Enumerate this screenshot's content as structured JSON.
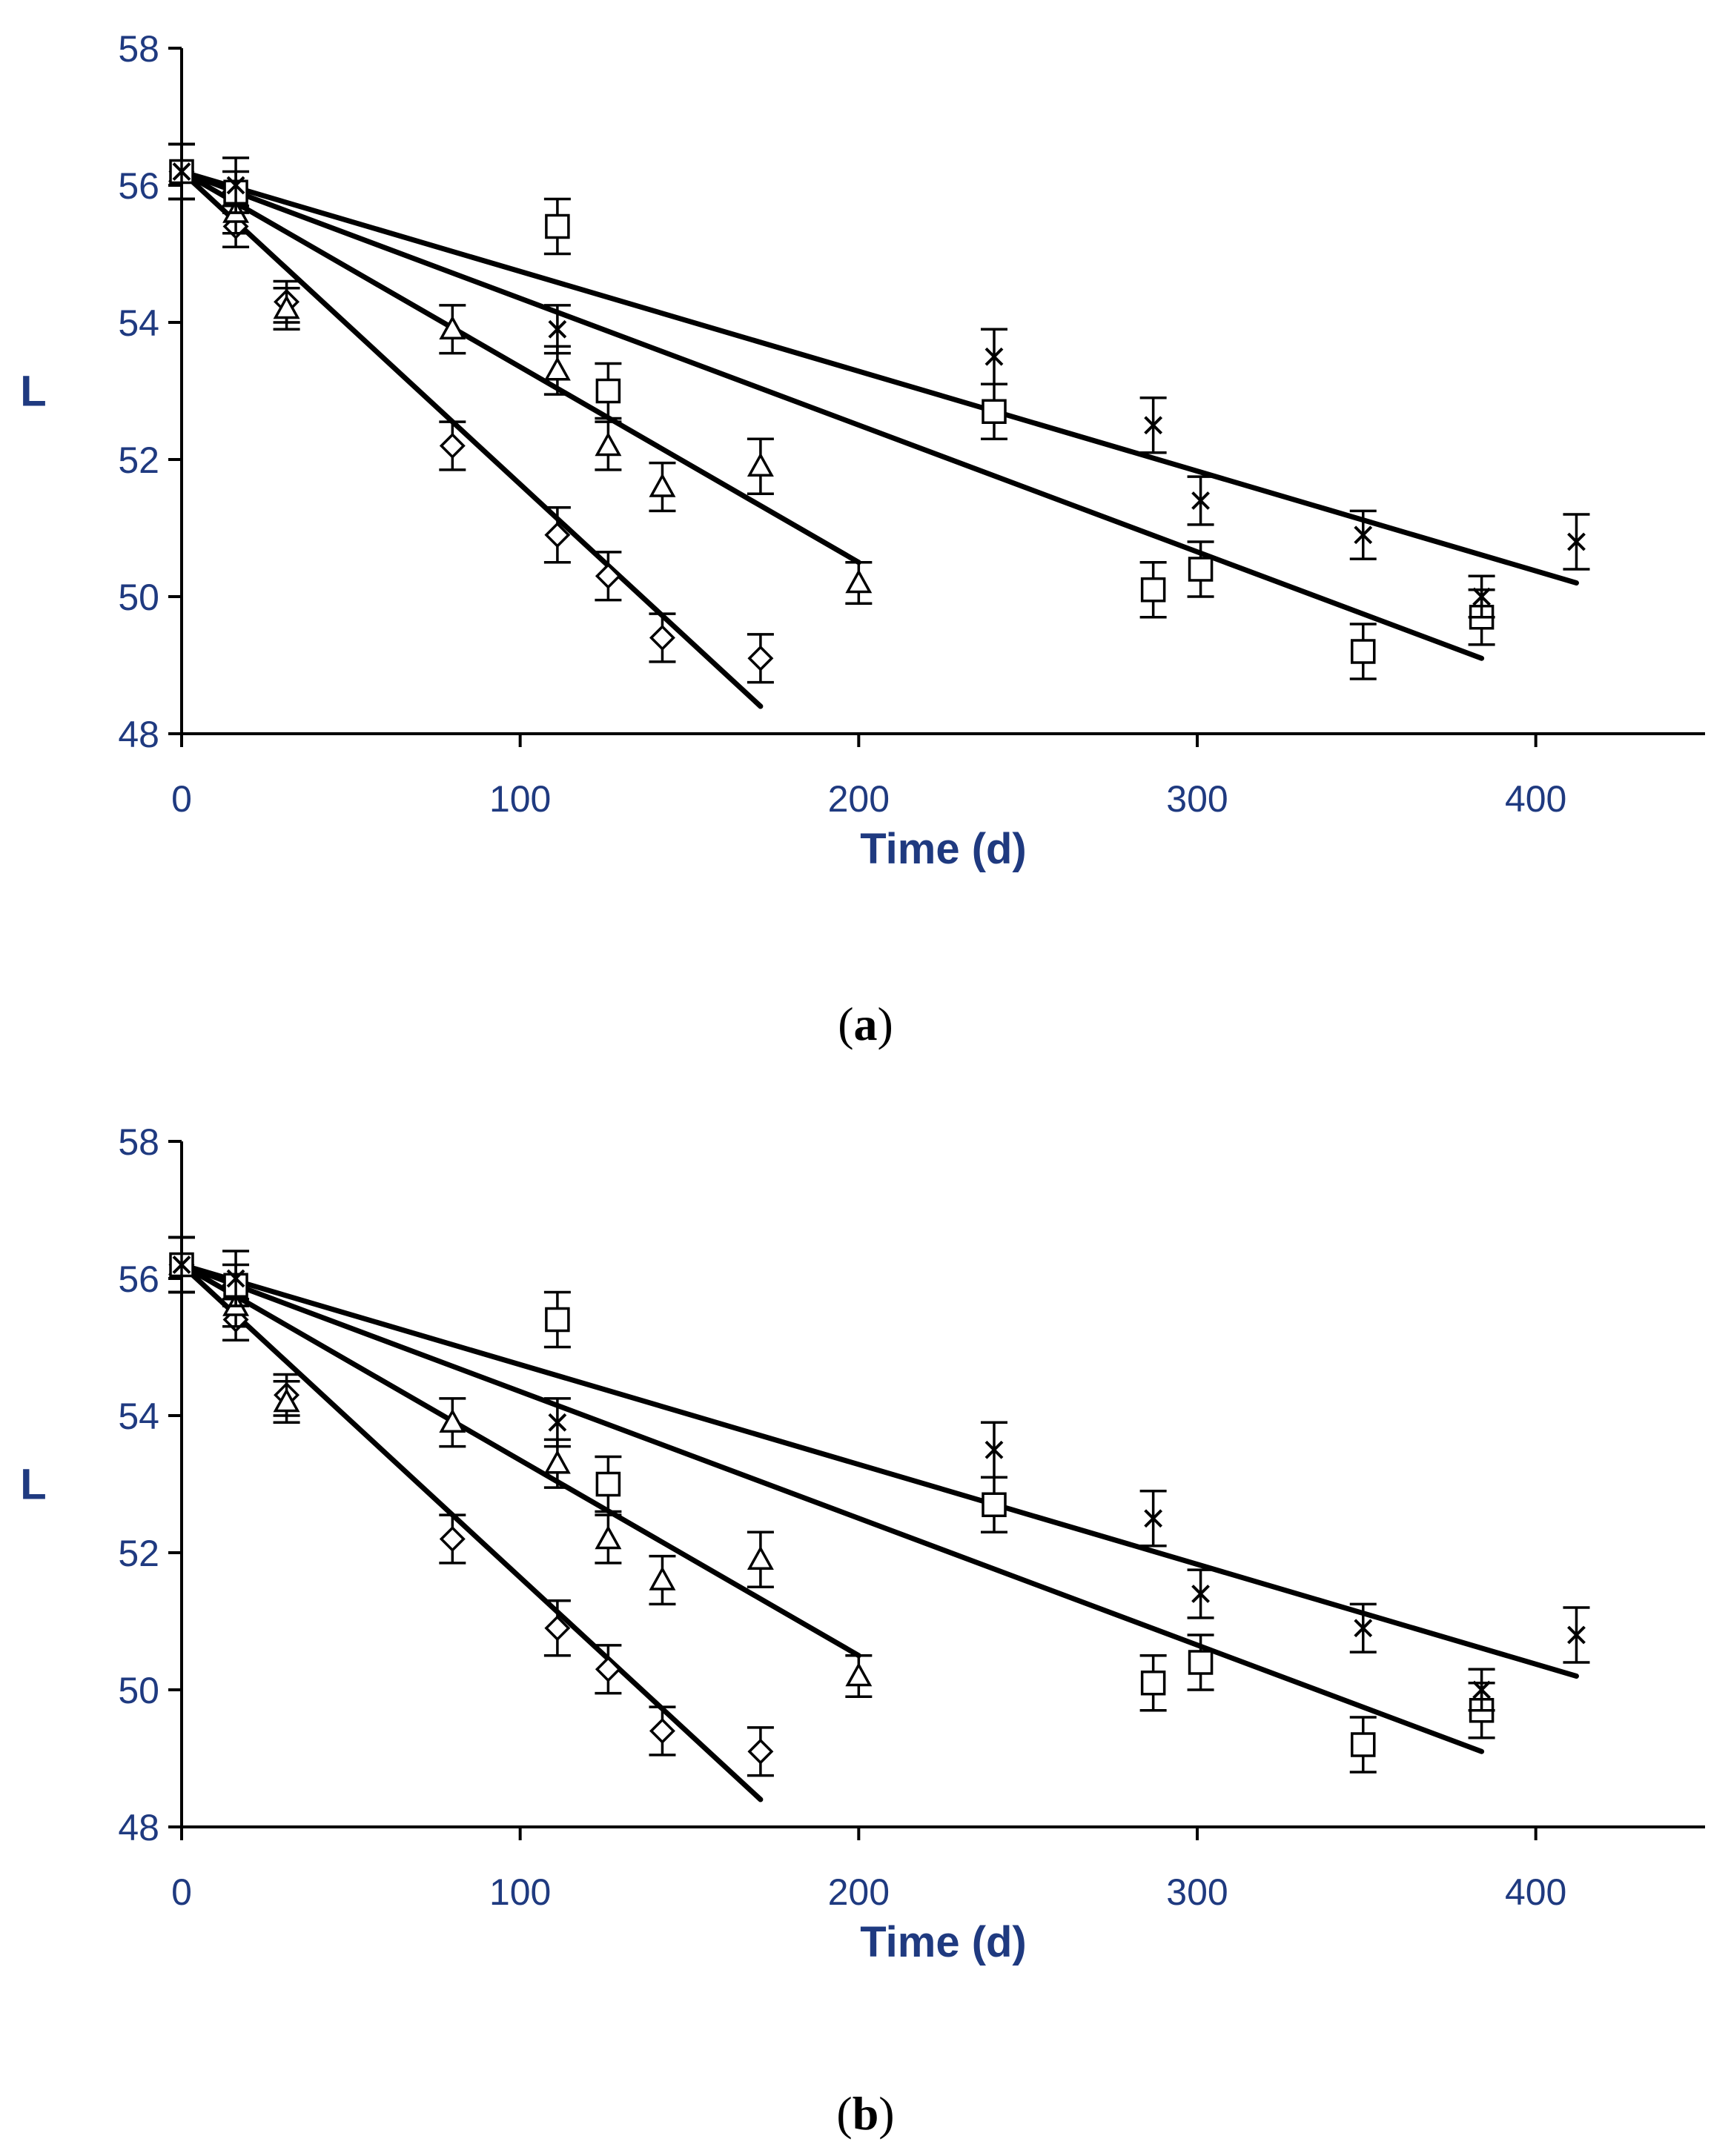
{
  "captions": {
    "a_letter": "a",
    "b_letter": "b"
  },
  "chart_data": [
    {
      "type": "scatter",
      "panel": "a",
      "title": "",
      "xlabel": "Time (d)",
      "ylabel": "L",
      "xlim": [
        0,
        450
      ],
      "ylim": [
        48,
        58
      ],
      "xticks": [
        0,
        100,
        200,
        300,
        400
      ],
      "yticks": [
        48,
        50,
        52,
        54,
        56,
        58
      ],
      "series": [
        {
          "name": "diamond",
          "marker": "diamond",
          "x": [
            0,
            16,
            31,
            80,
            111,
            126,
            142,
            171
          ],
          "y": [
            56.2,
            55.4,
            54.3,
            52.2,
            50.9,
            50.3,
            49.4,
            49.1
          ],
          "err": [
            0.4,
            0.3,
            0.3,
            0.35,
            0.4,
            0.35,
            0.35,
            0.35
          ],
          "fit": {
            "x": [
              0,
              171
            ],
            "y": [
              56.2,
              48.4
            ]
          }
        },
        {
          "name": "triangle",
          "marker": "triangle",
          "x": [
            0,
            16,
            31,
            80,
            111,
            126,
            142,
            171,
            200
          ],
          "y": [
            56.2,
            55.6,
            54.2,
            53.9,
            53.3,
            52.2,
            51.6,
            51.9,
            50.2
          ],
          "err": [
            0.4,
            0.3,
            0.3,
            0.35,
            0.35,
            0.35,
            0.35,
            0.4,
            0.3
          ],
          "fit": {
            "x": [
              0,
              200
            ],
            "y": [
              56.2,
              50.5
            ]
          }
        },
        {
          "name": "square",
          "marker": "square",
          "x": [
            0,
            16,
            111,
            126,
            240,
            287,
            301,
            349,
            384
          ],
          "y": [
            56.2,
            55.9,
            55.4,
            53.0,
            52.7,
            50.1,
            50.4,
            49.2,
            49.7
          ],
          "err": [
            0.4,
            0.3,
            0.4,
            0.4,
            0.4,
            0.4,
            0.4,
            0.4,
            0.4
          ],
          "fit": {
            "x": [
              0,
              384
            ],
            "y": [
              56.2,
              49.1
            ]
          }
        },
        {
          "name": "cross",
          "marker": "cross",
          "x": [
            0,
            16,
            111,
            240,
            287,
            301,
            349,
            384,
            412
          ],
          "y": [
            56.2,
            56.0,
            53.9,
            53.5,
            52.5,
            51.4,
            50.9,
            50.0,
            50.8
          ],
          "err": [
            0.4,
            0.4,
            0.35,
            0.4,
            0.4,
            0.35,
            0.35,
            0.3,
            0.4
          ],
          "fit": {
            "x": [
              0,
              412
            ],
            "y": [
              56.2,
              50.2
            ]
          }
        }
      ]
    },
    {
      "type": "scatter",
      "panel": "b",
      "title": "",
      "xlabel": "Time (d)",
      "ylabel": "L",
      "xlim": [
        0,
        450
      ],
      "ylim": [
        48,
        58
      ],
      "xticks": [
        0,
        100,
        200,
        300,
        400
      ],
      "yticks": [
        48,
        50,
        52,
        54,
        56,
        58
      ],
      "series": [
        {
          "name": "diamond",
          "marker": "diamond",
          "x": [
            0,
            16,
            31,
            80,
            111,
            126,
            142,
            171
          ],
          "y": [
            56.2,
            55.4,
            54.3,
            52.2,
            50.9,
            50.3,
            49.4,
            49.1
          ],
          "err": [
            0.4,
            0.3,
            0.3,
            0.35,
            0.4,
            0.35,
            0.35,
            0.35
          ],
          "fit": {
            "x": [
              0,
              171
            ],
            "y": [
              56.2,
              48.4
            ]
          }
        },
        {
          "name": "triangle",
          "marker": "triangle",
          "x": [
            0,
            16,
            31,
            80,
            111,
            126,
            142,
            171,
            200
          ],
          "y": [
            56.2,
            55.6,
            54.2,
            53.9,
            53.3,
            52.2,
            51.6,
            51.9,
            50.2
          ],
          "err": [
            0.4,
            0.3,
            0.3,
            0.35,
            0.35,
            0.35,
            0.35,
            0.4,
            0.3
          ],
          "fit": {
            "x": [
              0,
              200
            ],
            "y": [
              56.2,
              50.5
            ]
          }
        },
        {
          "name": "square",
          "marker": "square",
          "x": [
            0,
            16,
            111,
            126,
            240,
            287,
            301,
            349,
            384
          ],
          "y": [
            56.2,
            55.9,
            55.4,
            53.0,
            52.7,
            50.1,
            50.4,
            49.2,
            49.7
          ],
          "err": [
            0.4,
            0.3,
            0.4,
            0.4,
            0.4,
            0.4,
            0.4,
            0.4,
            0.4
          ],
          "fit": {
            "x": [
              0,
              384
            ],
            "y": [
              56.2,
              49.1
            ]
          }
        },
        {
          "name": "cross",
          "marker": "cross",
          "x": [
            0,
            16,
            111,
            240,
            287,
            301,
            349,
            384,
            412
          ],
          "y": [
            56.2,
            56.0,
            53.9,
            53.5,
            52.5,
            51.4,
            50.9,
            50.0,
            50.8
          ],
          "err": [
            0.4,
            0.4,
            0.35,
            0.4,
            0.4,
            0.35,
            0.35,
            0.3,
            0.4
          ],
          "fit": {
            "x": [
              0,
              412
            ],
            "y": [
              56.2,
              50.2
            ]
          }
        }
      ]
    }
  ]
}
